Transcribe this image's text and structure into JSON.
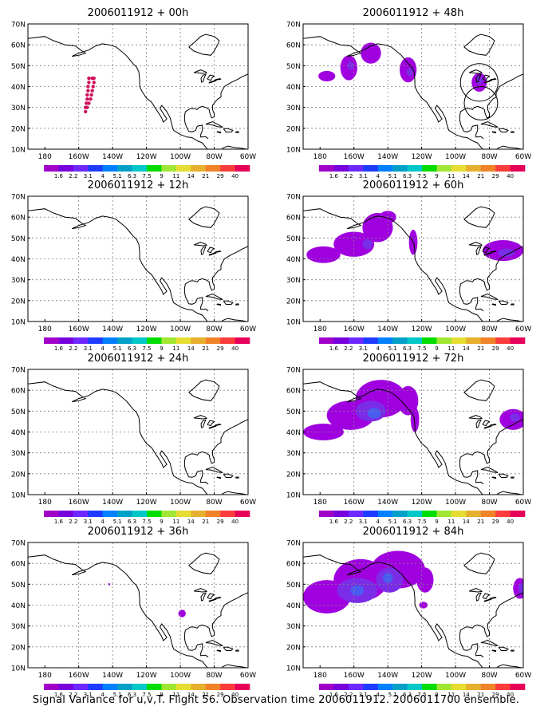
{
  "figure": {
    "caption": "Signal Variance for u,v,T. Flight 56. Observation time 2006011912. 2006011700 ensemble.",
    "colors": {
      "frame": "#000000",
      "coast": "#000000",
      "grid": "#808080",
      "background": "#ffffff"
    }
  },
  "colorbar": {
    "labels": [
      "1.6",
      "2.2",
      "3.1",
      "4",
      "5.1",
      "6.3",
      "7.5",
      "9",
      "11",
      "14",
      "21",
      "29",
      "40"
    ],
    "colors": [
      "#a000c8",
      "#7800dc",
      "#6e28ff",
      "#1e3cff",
      "#0080ff",
      "#00a0c8",
      "#00c8c8",
      "#00dc00",
      "#a0e632",
      "#e6dc32",
      "#e6af2d",
      "#f08228",
      "#fa3c3c",
      "#e6005a"
    ]
  },
  "chart_data": [
    {
      "type": "heatmap",
      "title": "2006011912 + 00h",
      "xlabel": "",
      "ylabel": "",
      "x_ticks": [
        "180",
        "160W",
        "140W",
        "120W",
        "100W",
        "80W",
        "60W"
      ],
      "y_ticks": [
        "10N",
        "20N",
        "30N",
        "40N",
        "50N",
        "60N",
        "70N"
      ],
      "xlim": [
        -190,
        -60
      ],
      "ylim": [
        10,
        70
      ],
      "grid": true,
      "observations": [
        {
          "lon": -156,
          "lat": 28
        },
        {
          "lon": -156,
          "lat": 30
        },
        {
          "lon": -155.5,
          "lat": 32
        },
        {
          "lon": -155,
          "lat": 34
        },
        {
          "lon": -155,
          "lat": 36
        },
        {
          "lon": -154.5,
          "lat": 38
        },
        {
          "lon": -154.5,
          "lat": 40
        },
        {
          "lon": -154,
          "lat": 42
        },
        {
          "lon": -154,
          "lat": 44
        },
        {
          "lon": -155,
          "lat": 30
        },
        {
          "lon": -154,
          "lat": 32
        },
        {
          "lon": -153,
          "lat": 34
        },
        {
          "lon": -152.5,
          "lat": 36
        },
        {
          "lon": -152,
          "lat": 38
        },
        {
          "lon": -151.5,
          "lat": 40
        },
        {
          "lon": -151,
          "lat": 42
        },
        {
          "lon": -151,
          "lat": 44
        },
        {
          "lon": -152,
          "lat": 44
        }
      ],
      "regions": []
    },
    {
      "type": "heatmap",
      "title": "2006011912 + 12h",
      "xlabel": "",
      "ylabel": "",
      "x_ticks": [
        "180",
        "160W",
        "140W",
        "120W",
        "100W",
        "80W",
        "60W"
      ],
      "y_ticks": [
        "10N",
        "20N",
        "30N",
        "40N",
        "50N",
        "60N",
        "70N"
      ],
      "xlim": [
        -190,
        -60
      ],
      "ylim": [
        10,
        70
      ],
      "grid": true,
      "regions": []
    },
    {
      "type": "heatmap",
      "title": "2006011912 + 24h",
      "xlabel": "",
      "ylabel": "",
      "x_ticks": [
        "180",
        "160W",
        "140W",
        "120W",
        "100W",
        "80W",
        "60W"
      ],
      "y_ticks": [
        "10N",
        "20N",
        "30N",
        "40N",
        "50N",
        "60N",
        "70N"
      ],
      "xlim": [
        -190,
        -60
      ],
      "ylim": [
        10,
        70
      ],
      "grid": true,
      "regions": []
    },
    {
      "type": "heatmap",
      "title": "2006011912 + 36h",
      "xlabel": "",
      "ylabel": "",
      "x_ticks": [
        "180",
        "160W",
        "140W",
        "120W",
        "100W",
        "80W",
        "60W"
      ],
      "y_ticks": [
        "10N",
        "20N",
        "30N",
        "40N",
        "50N",
        "60N",
        "70N"
      ],
      "xlim": [
        -190,
        -60
      ],
      "ylim": [
        10,
        70
      ],
      "grid": true,
      "regions": [
        {
          "lon": -142,
          "lat": 50,
          "rlon": 0.6,
          "rlat": 0.5,
          "level": 0
        },
        {
          "lon": -99,
          "lat": 36,
          "rlon": 2.2,
          "rlat": 1.8,
          "level": 0
        }
      ]
    },
    {
      "type": "heatmap",
      "title": "2006011912 + 48h",
      "xlabel": "",
      "ylabel": "",
      "x_ticks": [
        "180",
        "160W",
        "140W",
        "120W",
        "100W",
        "80W",
        "60W"
      ],
      "y_ticks": [
        "10N",
        "20N",
        "30N",
        "40N",
        "50N",
        "60N",
        "70N"
      ],
      "xlim": [
        -190,
        -60
      ],
      "ylim": [
        10,
        70
      ],
      "grid": true,
      "regions": [
        {
          "lon": -176,
          "lat": 45,
          "rlon": 5,
          "rlat": 2.5,
          "level": 0
        },
        {
          "lon": -163,
          "lat": 49,
          "rlon": 5,
          "rlat": 6,
          "level": 0
        },
        {
          "lon": -150,
          "lat": 56,
          "rlon": 6,
          "rlat": 5,
          "level": 0
        },
        {
          "lon": -162,
          "lat": 50,
          "rlon": 2,
          "rlat": 2,
          "level": 1
        },
        {
          "lon": -128,
          "lat": 48,
          "rlon": 5,
          "rlat": 6,
          "level": 0
        },
        {
          "lon": -127,
          "lat": 47,
          "rlon": 2,
          "rlat": 2,
          "level": 1
        },
        {
          "lon": -86,
          "lat": 42,
          "rlon": 4.5,
          "rlat": 4.5,
          "level": 0
        },
        {
          "lon": -86,
          "lat": 43,
          "rlon": 2,
          "rlat": 2,
          "level": 1
        }
      ],
      "circles": [
        {
          "lon": -86,
          "lat": 42,
          "r_lat": 9
        },
        {
          "lon": -85,
          "lat": 32,
          "r_lat": 8
        }
      ]
    },
    {
      "type": "heatmap",
      "title": "2006011912 + 60h",
      "xlabel": "",
      "ylabel": "",
      "x_ticks": [
        "180",
        "160W",
        "140W",
        "120W",
        "100W",
        "80W",
        "60W"
      ],
      "y_ticks": [
        "10N",
        "20N",
        "30N",
        "40N",
        "50N",
        "60N",
        "70N"
      ],
      "xlim": [
        -190,
        -60
      ],
      "ylim": [
        10,
        70
      ],
      "grid": true,
      "regions": [
        {
          "lon": -178,
          "lat": 42,
          "rlon": 10,
          "rlat": 4,
          "level": 0
        },
        {
          "lon": -160,
          "lat": 47,
          "rlon": 12,
          "rlat": 6,
          "level": 0
        },
        {
          "lon": -146,
          "lat": 55,
          "rlon": 9,
          "rlat": 7,
          "level": 0
        },
        {
          "lon": -140,
          "lat": 60,
          "rlon": 5,
          "rlat": 3,
          "level": 0
        },
        {
          "lon": -152,
          "lat": 47,
          "rlon": 3,
          "rlat": 2.5,
          "level": 1
        },
        {
          "lon": -125,
          "lat": 48,
          "rlon": 2.5,
          "rlat": 6,
          "level": 0
        },
        {
          "lon": -72,
          "lat": 44,
          "rlon": 12,
          "rlat": 5,
          "level": 0
        },
        {
          "lon": -70,
          "lat": 43,
          "rlon": 5,
          "rlat": 2,
          "level": 1
        }
      ]
    },
    {
      "type": "heatmap",
      "title": "2006011912 + 72h",
      "xlabel": "",
      "ylabel": "",
      "x_ticks": [
        "180",
        "160W",
        "140W",
        "120W",
        "100W",
        "80W",
        "60W"
      ],
      "y_ticks": [
        "10N",
        "20N",
        "30N",
        "40N",
        "50N",
        "60N",
        "70N"
      ],
      "xlim": [
        -190,
        -60
      ],
      "ylim": [
        10,
        70
      ],
      "grid": true,
      "regions": [
        {
          "lon": -178,
          "lat": 40,
          "rlon": 12,
          "rlat": 4,
          "level": 0
        },
        {
          "lon": -162,
          "lat": 48,
          "rlon": 14,
          "rlat": 7,
          "level": 0
        },
        {
          "lon": -144,
          "lat": 56,
          "rlon": 15,
          "rlat": 9,
          "level": 0
        },
        {
          "lon": -128,
          "lat": 55,
          "rlon": 6,
          "rlat": 7,
          "level": 0
        },
        {
          "lon": -124,
          "lat": 46,
          "rlon": 2.5,
          "rlat": 6,
          "level": 0
        },
        {
          "lon": -150,
          "lat": 50,
          "rlon": 9,
          "rlat": 5,
          "level": 1
        },
        {
          "lon": -148,
          "lat": 49,
          "rlon": 4,
          "rlat": 2.5,
          "level": 2
        },
        {
          "lon": -66,
          "lat": 46,
          "rlon": 8,
          "rlat": 5,
          "level": 0
        },
        {
          "lon": -65,
          "lat": 47,
          "rlon": 3,
          "rlat": 2,
          "level": 1
        }
      ]
    },
    {
      "type": "heatmap",
      "title": "2006011912 + 84h",
      "xlabel": "",
      "ylabel": "",
      "x_ticks": [
        "180",
        "160W",
        "140W",
        "120W",
        "100W",
        "80W",
        "60W"
      ],
      "y_ticks": [
        "10N",
        "20N",
        "30N",
        "40N",
        "50N",
        "60N",
        "70N"
      ],
      "xlim": [
        -190,
        -60
      ],
      "ylim": [
        10,
        70
      ],
      "grid": true,
      "regions": [
        {
          "lon": -176,
          "lat": 44,
          "rlon": 14,
          "rlat": 8,
          "level": 0
        },
        {
          "lon": -156,
          "lat": 52,
          "rlon": 16,
          "rlat": 10,
          "level": 0
        },
        {
          "lon": -134,
          "lat": 57,
          "rlon": 16,
          "rlat": 9,
          "level": 0
        },
        {
          "lon": -118,
          "lat": 52,
          "rlon": 5,
          "rlat": 6,
          "level": 0
        },
        {
          "lon": -119,
          "lat": 40,
          "rlon": 2.5,
          "rlat": 1.6,
          "level": 0
        },
        {
          "lon": -158,
          "lat": 47,
          "rlon": 12,
          "rlat": 6,
          "level": 1
        },
        {
          "lon": -139,
          "lat": 52,
          "rlon": 8,
          "rlat": 6,
          "level": 1
        },
        {
          "lon": -158,
          "lat": 47,
          "rlon": 4,
          "rlat": 2.5,
          "level": 2
        },
        {
          "lon": -140,
          "lat": 53,
          "rlon": 3,
          "rlat": 2.5,
          "level": 2
        },
        {
          "lon": -62,
          "lat": 48,
          "rlon": 4,
          "rlat": 5,
          "level": 0
        },
        {
          "lon": -61,
          "lat": 48,
          "rlon": 2,
          "rlat": 2.5,
          "level": 1
        }
      ]
    }
  ]
}
